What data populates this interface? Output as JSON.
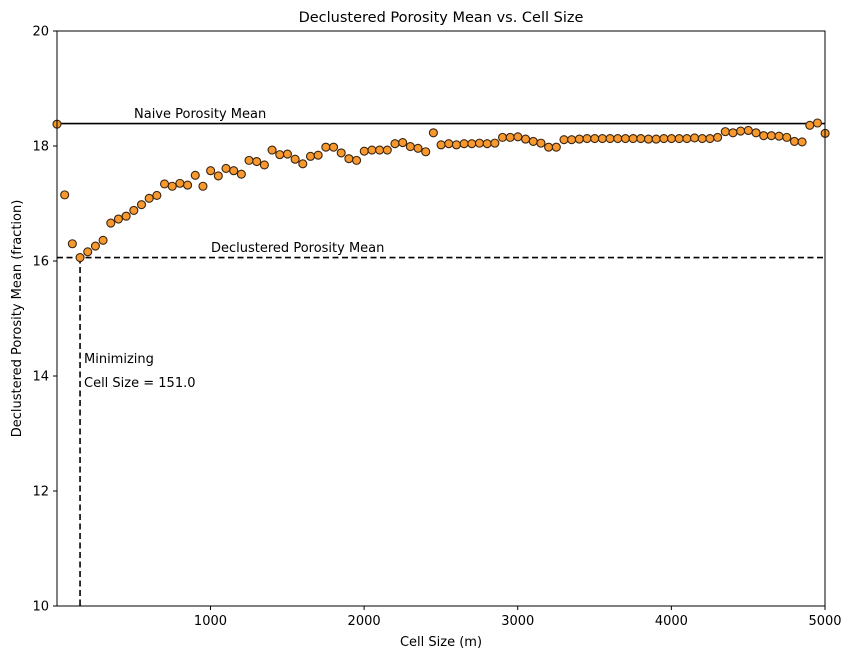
{
  "chart_data": {
    "type": "scatter",
    "title": "Declustered Porosity Mean vs. Cell Size",
    "xlabel": "Cell Size (m)",
    "ylabel": "Declustered Porosity Mean (fraction)",
    "xlim": [
      1,
      5000
    ],
    "ylim": [
      10,
      20
    ],
    "xticks": [
      1000,
      2000,
      3000,
      4000,
      5000
    ],
    "yticks": [
      10,
      12,
      14,
      16,
      18,
      20
    ],
    "grid": false,
    "marker_color": "#f7992f",
    "marker_edge": "#3a2410",
    "series": [
      {
        "x": [
          1,
          51,
          101,
          151,
          201,
          251,
          301,
          351,
          401,
          451,
          501,
          551,
          601,
          651,
          701,
          751,
          801,
          851,
          901,
          951,
          1001,
          1051,
          1101,
          1151,
          1201,
          1251,
          1301,
          1351,
          1401,
          1451,
          1501,
          1551,
          1601,
          1651,
          1701,
          1751,
          1801,
          1851,
          1901,
          1951,
          2001,
          2051,
          2101,
          2151,
          2201,
          2251,
          2301,
          2351,
          2401,
          2451,
          2501,
          2551,
          2601,
          2651,
          2701,
          2751,
          2801,
          2851,
          2901,
          2951,
          3001,
          3051,
          3101,
          3151,
          3201,
          3251,
          3301,
          3351,
          3401,
          3451,
          3501,
          3551,
          3601,
          3651,
          3701,
          3751,
          3801,
          3851,
          3901,
          3951,
          4001,
          4051,
          4101,
          4151,
          4201,
          4251,
          4301,
          4351,
          4401,
          4451,
          4501,
          4551,
          4601,
          4651,
          4701,
          4751,
          4801,
          4851,
          4901,
          4951,
          5001
        ],
        "y": [
          18.38,
          17.15,
          16.3,
          16.06,
          16.16,
          16.26,
          16.36,
          16.66,
          16.73,
          16.78,
          16.88,
          16.98,
          17.09,
          17.14,
          17.34,
          17.3,
          17.35,
          17.32,
          17.49,
          17.3,
          17.57,
          17.48,
          17.61,
          17.57,
          17.51,
          17.75,
          17.73,
          17.67,
          17.93,
          17.85,
          17.86,
          17.77,
          17.69,
          17.82,
          17.84,
          17.98,
          17.98,
          17.88,
          17.78,
          17.75,
          17.91,
          17.93,
          17.93,
          17.93,
          18.04,
          18.06,
          17.99,
          17.96,
          17.9,
          18.23,
          18.02,
          18.04,
          18.02,
          18.04,
          18.04,
          18.05,
          18.04,
          18.05,
          18.15,
          18.15,
          18.16,
          18.12,
          18.08,
          18.05,
          17.98,
          17.98,
          18.11,
          18.11,
          18.12,
          18.13,
          18.13,
          18.13,
          18.13,
          18.13,
          18.13,
          18.13,
          18.13,
          18.12,
          18.12,
          18.13,
          18.13,
          18.13,
          18.13,
          18.14,
          18.13,
          18.13,
          18.15,
          18.25,
          18.23,
          18.26,
          18.27,
          18.23,
          18.18,
          18.18,
          18.17,
          18.15,
          18.08,
          18.07,
          18.36,
          18.4,
          18.22
        ]
      }
    ],
    "annotations": {
      "naive_label": "Naive Porosity Mean",
      "naive_value": 18.39,
      "declustered_label": "Declustered Porosity Mean",
      "declustered_value": 16.06,
      "min_label_1": "Minimizing",
      "min_label_2": "Cell Size = 151.0",
      "min_cell_size": 151.0
    }
  }
}
